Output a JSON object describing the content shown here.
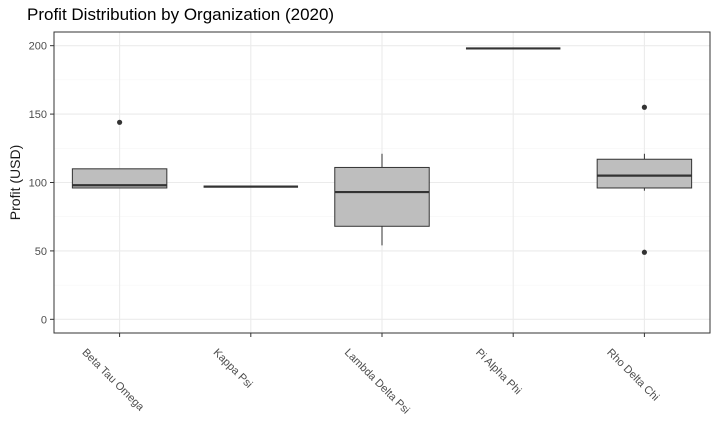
{
  "chart_data": {
    "type": "box",
    "title": "Profit Distribution by Organization (2020)",
    "xlabel": "",
    "ylabel": "Profit (USD)",
    "ylim": [
      -10,
      210
    ],
    "y_ticks": [
      0,
      50,
      100,
      150,
      200
    ],
    "grid": true,
    "theme": "bw",
    "colors": {
      "box_fill": "#bebebe",
      "box_stroke": "#333333",
      "grid_major": "#ebebeb",
      "grid_minor": "#f5f5f5",
      "panel_border": "#333333"
    },
    "categories": [
      "Beta Tau Omega",
      "Kappa Psi",
      "Lambda Delta Psi",
      "Pi Alpha Phi",
      "Rho Delta Chi"
    ],
    "boxes": [
      {
        "category": "Beta Tau Omega",
        "min": 96,
        "q1": 96,
        "median": 98,
        "q3": 110,
        "max": 110,
        "outliers": [
          144
        ]
      },
      {
        "category": "Kappa Psi",
        "min": 97,
        "q1": 97,
        "median": 97,
        "q3": 97,
        "max": 97,
        "outliers": []
      },
      {
        "category": "Lambda Delta Psi",
        "min": 54,
        "q1": 68,
        "median": 93,
        "q3": 111,
        "max": 121,
        "outliers": []
      },
      {
        "category": "Pi Alpha Phi",
        "min": 198,
        "q1": 198,
        "median": 198,
        "q3": 198,
        "max": 198,
        "outliers": []
      },
      {
        "category": "Rho Delta Chi",
        "min": 94,
        "q1": 96,
        "median": 105,
        "q3": 117,
        "max": 121,
        "outliers": [
          155,
          49
        ]
      }
    ]
  }
}
